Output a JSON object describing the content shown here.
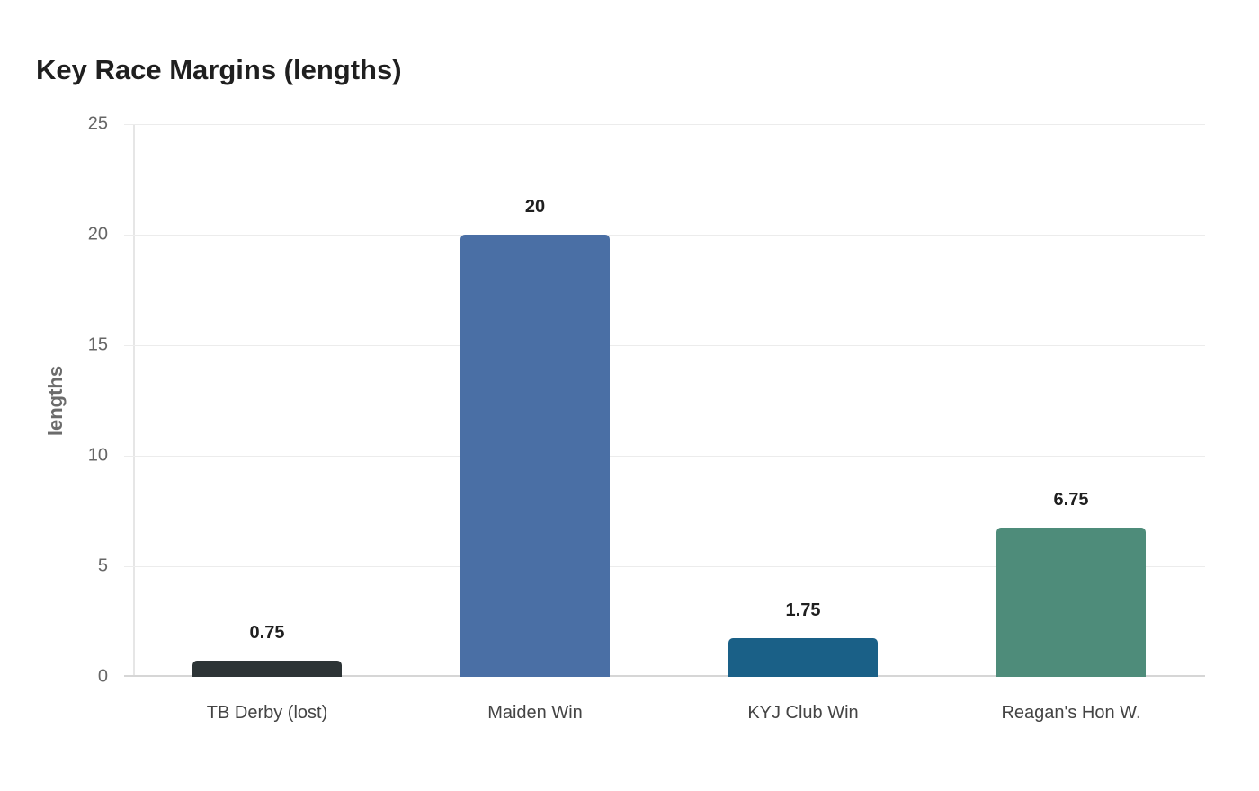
{
  "chart_data": {
    "type": "bar",
    "title": "Key Race Margins (lengths)",
    "xlabel": "",
    "ylabel": "lengths",
    "ylim": [
      0,
      25
    ],
    "yticks": [
      "0",
      "5",
      "10",
      "15",
      "20",
      "25"
    ],
    "grid": true,
    "legend": null,
    "categories": [
      "TB Derby (lost)",
      "Maiden Win",
      "KYJ Club Win",
      "Reagan's Hon W."
    ],
    "values": [
      0.75,
      20,
      1.75,
      6.75
    ],
    "value_labels": [
      "0.75",
      "20",
      "1.75",
      "6.75"
    ],
    "colors": [
      "#2d3436",
      "#4a6fa5",
      "#1a6087",
      "#4e8c7a"
    ]
  }
}
